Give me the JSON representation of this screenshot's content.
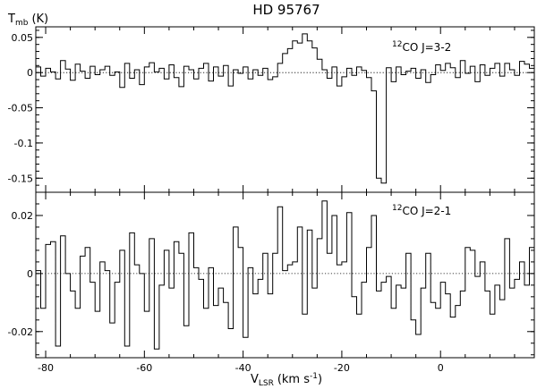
{
  "chart_data": [
    {
      "type": "line",
      "step": true,
      "title": "HD 95767",
      "ylabel": "T",
      "ylabel_sub": "mb",
      "ylabel_unit": "(K)",
      "annotation": {
        "sup": "12",
        "text": "CO J=3-2"
      },
      "xlim": [
        -82,
        19
      ],
      "ylim": [
        -0.17,
        0.065
      ],
      "yticks": [
        {
          "v": 0.05,
          "label": "0.05"
        },
        {
          "v": 0,
          "label": "0"
        },
        {
          "v": -0.05,
          "label": "-0.05"
        },
        {
          "v": -0.1,
          "label": "-0.1"
        },
        {
          "v": -0.15,
          "label": "-0.15"
        }
      ],
      "x": [
        -82,
        -81,
        -80,
        -79,
        -78,
        -77,
        -76,
        -75,
        -74,
        -73,
        -72,
        -71,
        -70,
        -69,
        -68,
        -67,
        -66,
        -65,
        -64,
        -63,
        -62,
        -61,
        -60,
        -59,
        -58,
        -57,
        -56,
        -55,
        -54,
        -53,
        -52,
        -51,
        -50,
        -49,
        -48,
        -47,
        -46,
        -45,
        -44,
        -43,
        -42,
        -41,
        -40,
        -39,
        -38,
        -37,
        -36,
        -35,
        -34,
        -33,
        -32,
        -31,
        -30,
        -29,
        -28,
        -27,
        -26,
        -25,
        -24,
        -23,
        -22,
        -21,
        -20,
        -19,
        -18,
        -17,
        -16,
        -15,
        -14,
        -13,
        -12,
        -11,
        -10,
        -9,
        -8,
        -7,
        -6,
        -5,
        -4,
        -3,
        -2,
        -1,
        0,
        1,
        2,
        3,
        4,
        5,
        6,
        7,
        8,
        9,
        10,
        11,
        12,
        13,
        14,
        15,
        16,
        17,
        18
      ],
      "values": [
        0.008,
        -0.005,
        0.006,
        0.001,
        -0.009,
        0.017,
        0.005,
        -0.011,
        0.012,
        0.002,
        -0.008,
        0.009,
        -0.003,
        0.004,
        0.009,
        -0.004,
        0.001,
        -0.021,
        0.013,
        -0.008,
        0.004,
        -0.017,
        0.008,
        0.014,
        0.001,
        0.006,
        -0.009,
        0.011,
        -0.007,
        -0.02,
        0.009,
        0.004,
        -0.009,
        0.006,
        0.013,
        -0.012,
        0.008,
        -0.005,
        0.01,
        -0.019,
        0.004,
        -0.001,
        0.008,
        -0.009,
        0.004,
        -0.004,
        0.006,
        -0.01,
        -0.006,
        0.013,
        0.027,
        0.034,
        0.045,
        0.042,
        0.055,
        0.045,
        0.035,
        0.019,
        0.004,
        -0.008,
        0.008,
        -0.019,
        -0.006,
        0.006,
        -0.004,
        0.008,
        0.003,
        -0.007,
        -0.026,
        -0.15,
        -0.157,
        0.007,
        -0.013,
        0.008,
        -0.003,
        0.002,
        0.006,
        -0.008,
        0.004,
        -0.014,
        -0.003,
        0.011,
        0.003,
        0.013,
        0.007,
        -0.007,
        0.017,
        -0.001,
        0.009,
        -0.013,
        0.011,
        -0.004,
        0.006,
        0.013,
        -0.005,
        0.013,
        0.004,
        -0.004,
        0.016,
        0.012,
        0.006
      ]
    },
    {
      "type": "line",
      "step": true,
      "xlabel": "V",
      "xlabel_sub": "LSR",
      "xlabel_unit_pre": "(km s",
      "xlabel_unit_sup": "-1",
      "xlabel_unit_post": ")",
      "annotation": {
        "sup": "12",
        "text": "CO J=2-1"
      },
      "xlim": [
        -82,
        19
      ],
      "ylim": [
        -0.029,
        0.028
      ],
      "yticks": [
        {
          "v": 0.02,
          "label": "0.02"
        },
        {
          "v": 0,
          "label": "0"
        },
        {
          "v": -0.02,
          "label": "-0.02"
        }
      ],
      "xticks": [
        {
          "v": -80,
          "label": "-80"
        },
        {
          "v": -60,
          "label": "-60"
        },
        {
          "v": -40,
          "label": "-40"
        },
        {
          "v": -20,
          "label": "-20"
        },
        {
          "v": 0,
          "label": "0"
        }
      ],
      "x": [
        -82,
        -81,
        -80,
        -79,
        -78,
        -77,
        -76,
        -75,
        -74,
        -73,
        -72,
        -71,
        -70,
        -69,
        -68,
        -67,
        -66,
        -65,
        -64,
        -63,
        -62,
        -61,
        -60,
        -59,
        -58,
        -57,
        -56,
        -55,
        -54,
        -53,
        -52,
        -51,
        -50,
        -49,
        -48,
        -47,
        -46,
        -45,
        -44,
        -43,
        -42,
        -41,
        -40,
        -39,
        -38,
        -37,
        -36,
        -35,
        -34,
        -33,
        -32,
        -31,
        -30,
        -29,
        -28,
        -27,
        -26,
        -25,
        -24,
        -23,
        -22,
        -21,
        -20,
        -19,
        -18,
        -17,
        -16,
        -15,
        -14,
        -13,
        -12,
        -11,
        -10,
        -9,
        -8,
        -7,
        -6,
        -5,
        -4,
        -3,
        -2,
        -1,
        0,
        1,
        2,
        3,
        4,
        5,
        6,
        7,
        8,
        9,
        10,
        11,
        12,
        13,
        14,
        15,
        16,
        17,
        18
      ],
      "values": [
        0.001,
        -0.012,
        0.01,
        0.011,
        -0.025,
        0.013,
        0,
        -0.006,
        -0.012,
        0.006,
        0.009,
        -0.003,
        -0.013,
        0.004,
        0.001,
        -0.017,
        -0.003,
        0.008,
        -0.025,
        0.014,
        0.003,
        0,
        -0.013,
        0.012,
        -0.026,
        -0.004,
        0.008,
        -0.005,
        0.011,
        0.007,
        -0.018,
        0.014,
        0.002,
        -0.002,
        -0.012,
        0.002,
        -0.011,
        -0.005,
        -0.01,
        -0.019,
        0.016,
        0.009,
        -0.022,
        0.002,
        -0.007,
        -0.002,
        0.007,
        -0.007,
        0.007,
        0.023,
        0.001,
        0.003,
        0.004,
        0.016,
        -0.014,
        0.015,
        -0.005,
        0.012,
        0.025,
        0.007,
        0.02,
        0.003,
        0.004,
        0.021,
        -0.008,
        -0.014,
        -0.003,
        0.009,
        0.02,
        -0.006,
        -0.003,
        -0.001,
        -0.012,
        -0.004,
        -0.005,
        0.007,
        -0.016,
        -0.021,
        -0.005,
        0.007,
        -0.01,
        -0.012,
        -0.003,
        -0.007,
        -0.015,
        -0.011,
        -0.006,
        0.009,
        0.008,
        -0.001,
        0.004,
        -0.006,
        -0.014,
        -0.004,
        -0.009,
        0.012,
        -0.005,
        -0.002,
        0.004,
        -0.004,
        0.009
      ]
    }
  ]
}
